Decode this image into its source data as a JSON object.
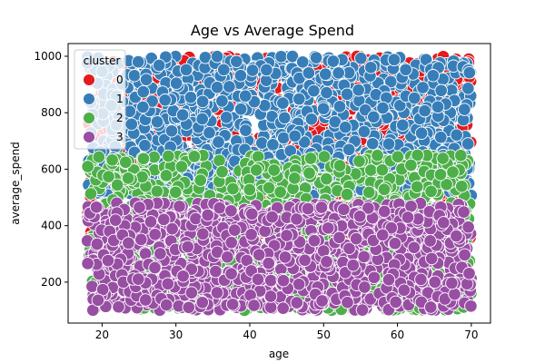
{
  "chart_data": {
    "type": "scatter",
    "title": "Age vs Average Spend",
    "xlabel": "age",
    "ylabel": "average_spend",
    "xlim": [
      15.4,
      72.6
    ],
    "ylim": [
      55,
      1045
    ],
    "xticks": [
      20,
      30,
      40,
      50,
      60,
      70
    ],
    "yticks": [
      200,
      400,
      600,
      800,
      1000
    ],
    "grid": false,
    "legend": {
      "title": "cluster",
      "placement": "top-left"
    },
    "point_count_per_series": 1200,
    "series": [
      {
        "name": "0",
        "color": "#e41a1c",
        "x_range": [
          18,
          70
        ],
        "y_range": [
          300,
          1000
        ]
      },
      {
        "name": "1",
        "color": "#377eb8",
        "x_range": [
          18,
          70
        ],
        "y_range": [
          500,
          1000
        ]
      },
      {
        "name": "2",
        "color": "#4daf4a",
        "x_range": [
          18,
          70
        ],
        "y_range": [
          100,
          650
        ]
      },
      {
        "name": "3",
        "color": "#984ea3",
        "x_range": [
          18,
          70
        ],
        "y_range": [
          100,
          480
        ]
      }
    ]
  }
}
